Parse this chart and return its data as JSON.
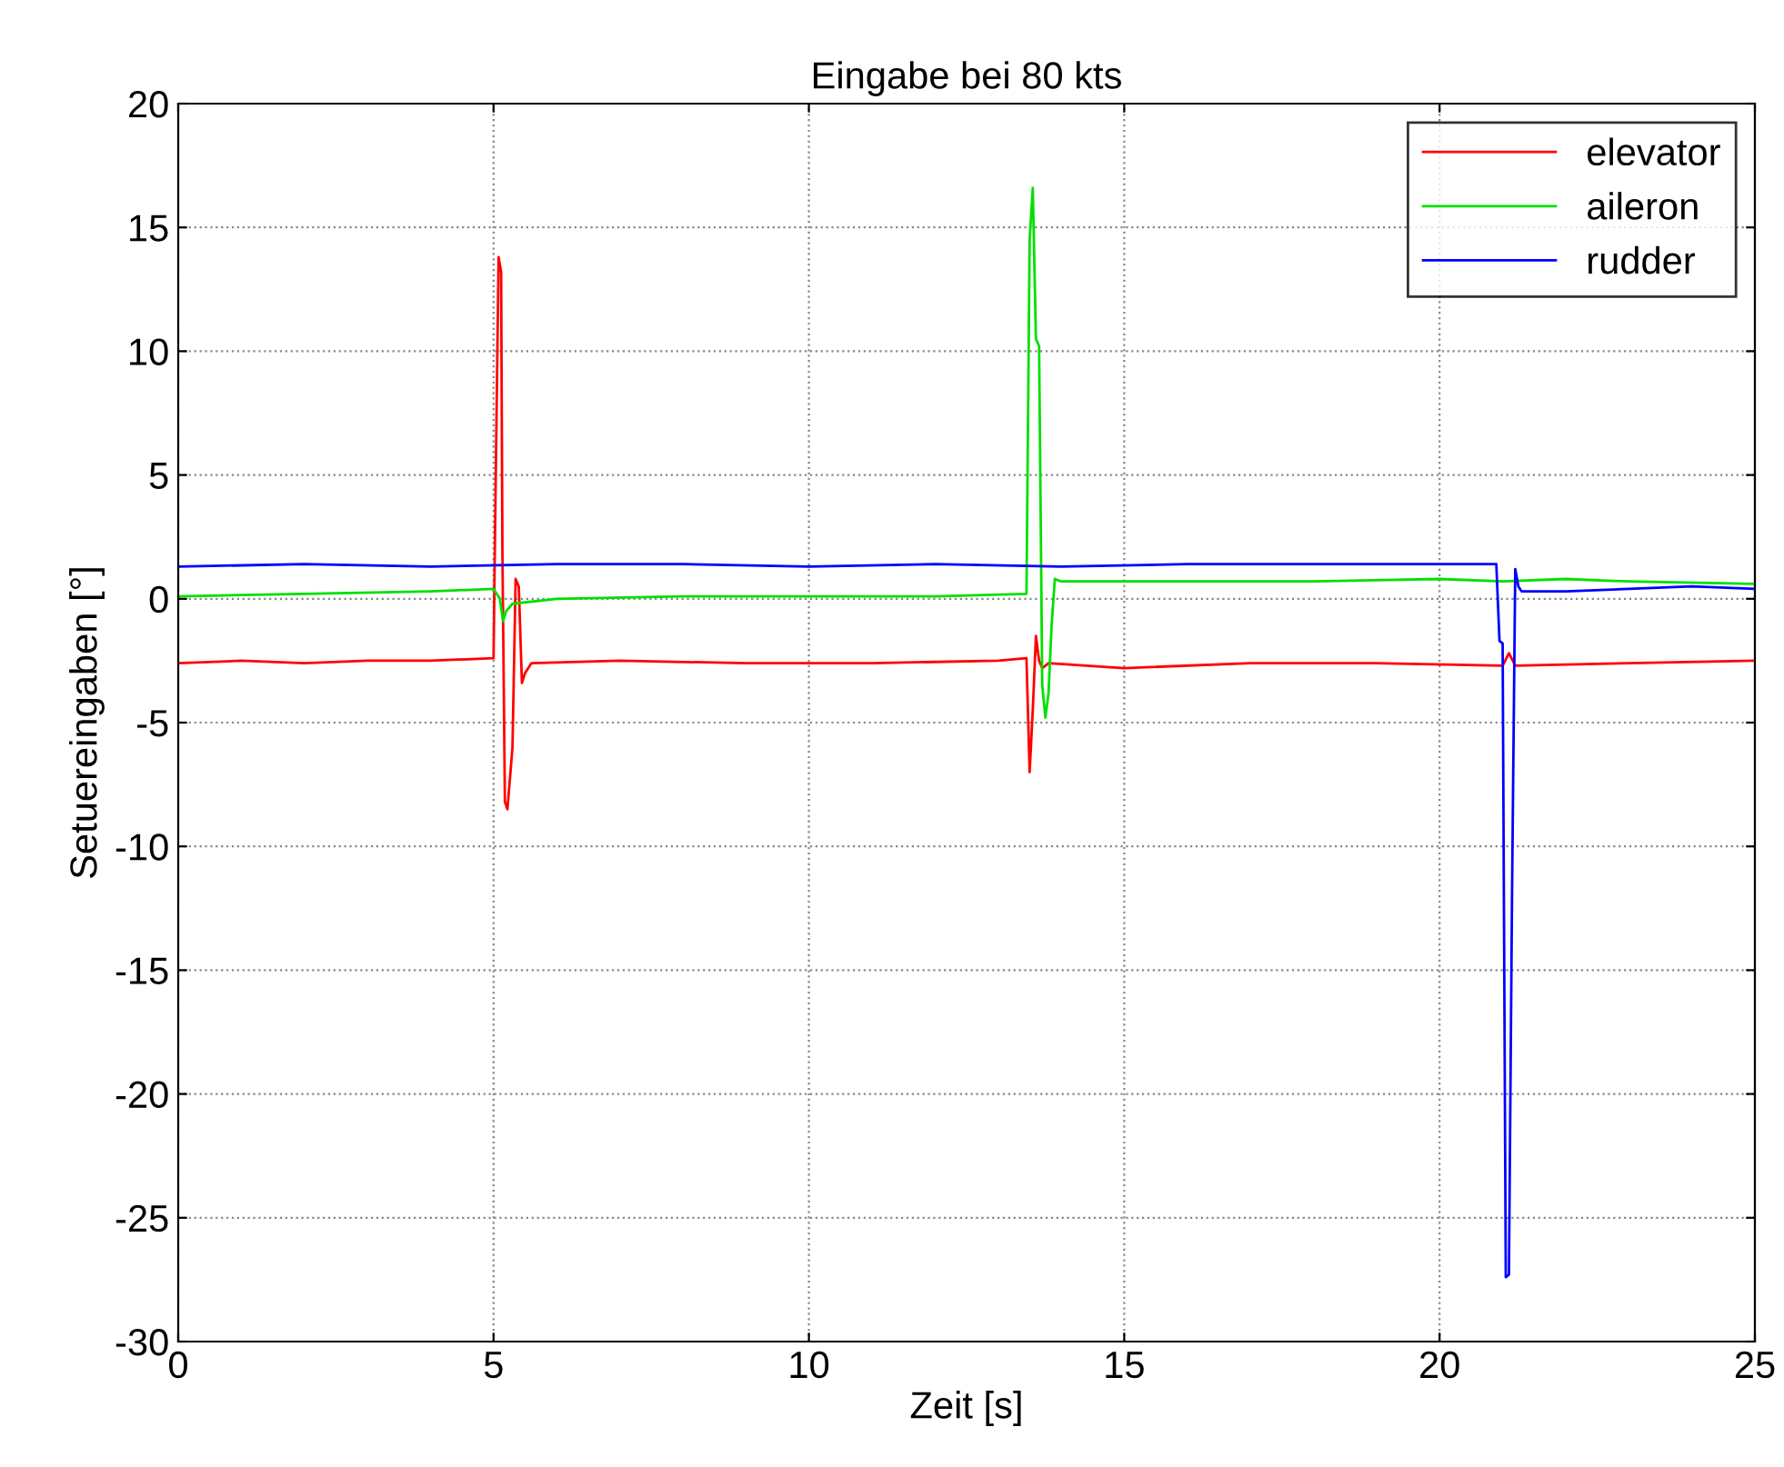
{
  "chart_data": {
    "type": "line",
    "title": "Eingabe bei 80 kts",
    "xlabel": "Zeit [s]",
    "ylabel": "Setuereingaben [°]",
    "xlim": [
      0,
      25
    ],
    "xticks": [
      0,
      5,
      10,
      15,
      20,
      25
    ],
    "ylim": [
      -30,
      20
    ],
    "yticks": [
      -30,
      -25,
      -20,
      -15,
      -10,
      -5,
      0,
      5,
      10,
      15,
      20
    ],
    "grid": true,
    "legend": "top right",
    "marker": "none",
    "line_style": "solid",
    "series": [
      {
        "name": "elevator",
        "color": "#ff0000",
        "x": [
          0,
          1,
          2,
          3,
          4,
          5.0,
          5.02,
          5.08,
          5.12,
          5.14,
          5.18,
          5.22,
          5.3,
          5.35,
          5.4,
          5.45,
          5.5,
          5.6,
          7,
          9,
          11,
          13,
          13.45,
          13.5,
          13.55,
          13.6,
          13.65,
          13.7,
          13.8,
          15,
          17,
          19,
          21,
          21.1,
          21.2,
          23,
          25
        ],
        "values": [
          -2.6,
          -2.5,
          -2.6,
          -2.5,
          -2.5,
          -2.4,
          2,
          13.8,
          13.2,
          2,
          -8.2,
          -8.5,
          -6,
          0.8,
          0.5,
          -3.4,
          -3,
          -2.6,
          -2.5,
          -2.6,
          -2.6,
          -2.5,
          -2.4,
          -7,
          -4.5,
          -1.5,
          -2.5,
          -2.8,
          -2.6,
          -2.8,
          -2.6,
          -2.6,
          -2.7,
          -2.2,
          -2.7,
          -2.6,
          -2.5
        ]
      },
      {
        "name": "aileron",
        "color": "#00e000",
        "x": [
          0,
          2,
          4,
          5.0,
          5.1,
          5.15,
          5.2,
          5.3,
          6,
          8,
          10,
          12,
          13.45,
          13.5,
          13.55,
          13.6,
          13.65,
          13.7,
          13.75,
          13.8,
          13.85,
          13.9,
          14,
          16,
          18,
          20,
          21,
          22,
          23,
          25
        ],
        "values": [
          0.1,
          0.2,
          0.3,
          0.4,
          0,
          -0.9,
          -0.5,
          -0.2,
          0,
          0.1,
          0.1,
          0.1,
          0.2,
          14.5,
          16.6,
          10.5,
          10.2,
          -3.5,
          -4.8,
          -3.8,
          -1,
          0.8,
          0.7,
          0.7,
          0.7,
          0.8,
          0.7,
          0.8,
          0.7,
          0.6
        ]
      },
      {
        "name": "rudder",
        "color": "#0000ff",
        "x": [
          0,
          2,
          4,
          6,
          8,
          10,
          12,
          14,
          16,
          18,
          20.9,
          20.95,
          21.0,
          21.05,
          21.1,
          21.15,
          21.2,
          21.25,
          21.3,
          22,
          23,
          24,
          25
        ],
        "values": [
          1.3,
          1.4,
          1.3,
          1.4,
          1.4,
          1.3,
          1.4,
          1.3,
          1.4,
          1.4,
          1.4,
          -1.7,
          -1.8,
          -27.4,
          -27.3,
          -11.7,
          1.2,
          0.5,
          0.3,
          0.3,
          0.4,
          0.5,
          0.4
        ]
      }
    ]
  }
}
